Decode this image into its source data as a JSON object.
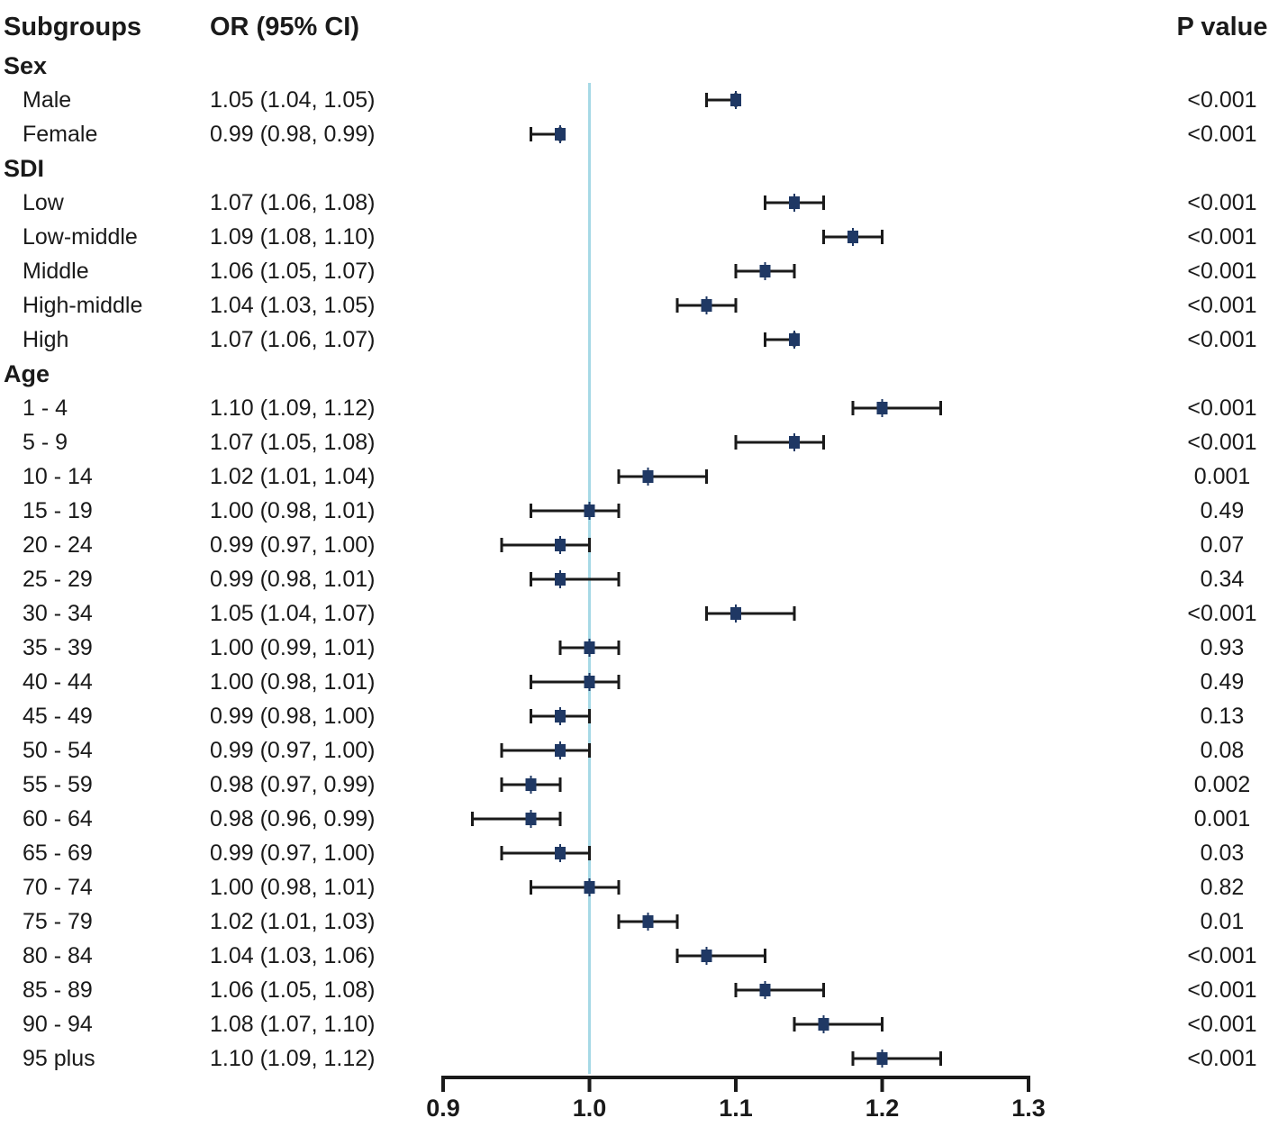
{
  "header": {
    "subgroups": "Subgroups",
    "or_ci": "OR (95% CI)",
    "p_value": "P value"
  },
  "colors": {
    "marker": "#1F3864",
    "ci_line": "#1a1a1a",
    "axis": "#1a1a1a",
    "reference_line": "#A6D9E6",
    "text": "#1a1a1a"
  },
  "chart_data": {
    "type": "forest",
    "title": "",
    "xlabel": "",
    "reference_value": 1.0,
    "xlim": [
      0.9,
      1.3
    ],
    "axis_ticks": [
      "0.9",
      "1.0",
      "1.1",
      "1.2",
      "1.3"
    ],
    "legend": null,
    "grid": false,
    "rows": [
      {
        "kind": "section",
        "label": "Sex"
      },
      {
        "kind": "item",
        "label": "Male",
        "or_ci": "1.05 (1.04, 1.05)",
        "p": "<0.001",
        "plot": {
          "lo": 1.08,
          "x": 1.1,
          "hi": 1.1
        }
      },
      {
        "kind": "item",
        "label": "Female",
        "or_ci": "0.99 (0.98, 0.99)",
        "p": "<0.001",
        "plot": {
          "lo": 0.96,
          "x": 0.98,
          "hi": 0.98
        }
      },
      {
        "kind": "section",
        "label": "SDI"
      },
      {
        "kind": "item",
        "label": "Low",
        "or_ci": "1.07 (1.06, 1.08)",
        "p": "<0.001",
        "plot": {
          "lo": 1.12,
          "x": 1.14,
          "hi": 1.16
        }
      },
      {
        "kind": "item",
        "label": "Low-middle",
        "or_ci": "1.09 (1.08, 1.10)",
        "p": "<0.001",
        "plot": {
          "lo": 1.16,
          "x": 1.18,
          "hi": 1.2
        }
      },
      {
        "kind": "item",
        "label": "Middle",
        "or_ci": "1.06 (1.05, 1.07)",
        "p": "<0.001",
        "plot": {
          "lo": 1.1,
          "x": 1.12,
          "hi": 1.14
        }
      },
      {
        "kind": "item",
        "label": "High-middle",
        "or_ci": "1.04 (1.03, 1.05)",
        "p": "<0.001",
        "plot": {
          "lo": 1.06,
          "x": 1.08,
          "hi": 1.1
        }
      },
      {
        "kind": "item",
        "label": "High",
        "or_ci": "1.07 (1.06, 1.07)",
        "p": "<0.001",
        "plot": {
          "lo": 1.12,
          "x": 1.14,
          "hi": 1.14
        }
      },
      {
        "kind": "section",
        "label": "Age"
      },
      {
        "kind": "item",
        "label": "1 - 4",
        "or_ci": "1.10 (1.09, 1.12)",
        "p": "<0.001",
        "plot": {
          "lo": 1.18,
          "x": 1.2,
          "hi": 1.24
        }
      },
      {
        "kind": "item",
        "label": "5 - 9",
        "or_ci": "1.07 (1.05, 1.08)",
        "p": "<0.001",
        "plot": {
          "lo": 1.1,
          "x": 1.14,
          "hi": 1.16
        }
      },
      {
        "kind": "item",
        "label": "10 - 14",
        "or_ci": "1.02 (1.01, 1.04)",
        "p": "0.001",
        "plot": {
          "lo": 1.02,
          "x": 1.04,
          "hi": 1.08
        }
      },
      {
        "kind": "item",
        "label": "15 - 19",
        "or_ci": "1.00 (0.98, 1.01)",
        "p": "0.49",
        "plot": {
          "lo": 0.96,
          "x": 1.0,
          "hi": 1.02
        }
      },
      {
        "kind": "item",
        "label": "20 - 24",
        "or_ci": "0.99 (0.97, 1.00)",
        "p": "0.07",
        "plot": {
          "lo": 0.94,
          "x": 0.98,
          "hi": 1.0
        }
      },
      {
        "kind": "item",
        "label": "25 - 29",
        "or_ci": "0.99 (0.98, 1.01)",
        "p": "0.34",
        "plot": {
          "lo": 0.96,
          "x": 0.98,
          "hi": 1.02
        }
      },
      {
        "kind": "item",
        "label": "30 - 34",
        "or_ci": "1.05 (1.04, 1.07)",
        "p": "<0.001",
        "plot": {
          "lo": 1.08,
          "x": 1.1,
          "hi": 1.14
        }
      },
      {
        "kind": "item",
        "label": "35 - 39",
        "or_ci": "1.00 (0.99, 1.01)",
        "p": "0.93",
        "plot": {
          "lo": 0.98,
          "x": 1.0,
          "hi": 1.02
        }
      },
      {
        "kind": "item",
        "label": "40 - 44",
        "or_ci": "1.00 (0.98, 1.01)",
        "p": "0.49",
        "plot": {
          "lo": 0.96,
          "x": 1.0,
          "hi": 1.02
        }
      },
      {
        "kind": "item",
        "label": "45 - 49",
        "or_ci": "0.99 (0.98, 1.00)",
        "p": "0.13",
        "plot": {
          "lo": 0.96,
          "x": 0.98,
          "hi": 1.0
        }
      },
      {
        "kind": "item",
        "label": "50 - 54",
        "or_ci": "0.99 (0.97, 1.00)",
        "p": "0.08",
        "plot": {
          "lo": 0.94,
          "x": 0.98,
          "hi": 1.0
        }
      },
      {
        "kind": "item",
        "label": "55 - 59",
        "or_ci": "0.98 (0.97, 0.99)",
        "p": "0.002",
        "plot": {
          "lo": 0.94,
          "x": 0.96,
          "hi": 0.98
        }
      },
      {
        "kind": "item",
        "label": "60 - 64",
        "or_ci": "0.98 (0.96, 0.99)",
        "p": "0.001",
        "plot": {
          "lo": 0.92,
          "x": 0.96,
          "hi": 0.98
        }
      },
      {
        "kind": "item",
        "label": "65 - 69",
        "or_ci": "0.99 (0.97, 1.00)",
        "p": "0.03",
        "plot": {
          "lo": 0.94,
          "x": 0.98,
          "hi": 1.0
        }
      },
      {
        "kind": "item",
        "label": "70 - 74",
        "or_ci": "1.00 (0.98, 1.01)",
        "p": "0.82",
        "plot": {
          "lo": 0.96,
          "x": 1.0,
          "hi": 1.02
        }
      },
      {
        "kind": "item",
        "label": "75 - 79",
        "or_ci": "1.02 (1.01, 1.03)",
        "p": "0.01",
        "plot": {
          "lo": 1.02,
          "x": 1.04,
          "hi": 1.06
        }
      },
      {
        "kind": "item",
        "label": "80 - 84",
        "or_ci": "1.04 (1.03, 1.06)",
        "p": "<0.001",
        "plot": {
          "lo": 1.06,
          "x": 1.08,
          "hi": 1.12
        }
      },
      {
        "kind": "item",
        "label": "85 - 89",
        "or_ci": "1.06 (1.05, 1.08)",
        "p": "<0.001",
        "plot": {
          "lo": 1.1,
          "x": 1.12,
          "hi": 1.16
        }
      },
      {
        "kind": "item",
        "label": "90 - 94",
        "or_ci": "1.08 (1.07, 1.10)",
        "p": "<0.001",
        "plot": {
          "lo": 1.14,
          "x": 1.16,
          "hi": 1.2
        }
      },
      {
        "kind": "item",
        "label": "95 plus",
        "or_ci": "1.10 (1.09, 1.12)",
        "p": "<0.001",
        "plot": {
          "lo": 1.18,
          "x": 1.2,
          "hi": 1.24
        }
      }
    ]
  }
}
